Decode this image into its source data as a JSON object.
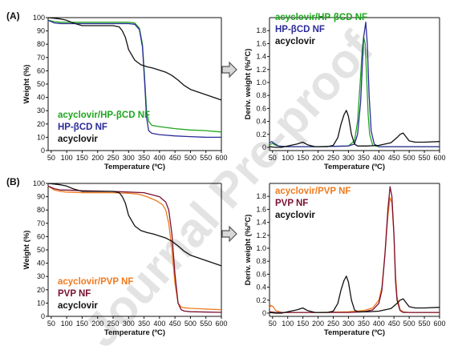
{
  "watermark": "Journal Pre-proof",
  "colors": {
    "acyclovir": "#111111",
    "hpbcd_nf": "#2b2b9a",
    "acyclovir_hpbcd_nf": "#1fa51f",
    "pvp_nf": "#7a1030",
    "acyclovir_pvp_nf": "#f07a1e"
  },
  "arrow_icon": "right-arrow-icon",
  "chart_data": [
    {
      "id": "A-left",
      "panel_label": "(A)",
      "type": "line",
      "xlabel": "Temperature (ºC)",
      "ylabel": "Weight (%)",
      "xlim": [
        40,
        600
      ],
      "ylim": [
        0,
        100
      ],
      "x_ticks": [
        50,
        100,
        150,
        200,
        250,
        300,
        350,
        400,
        450,
        500,
        550,
        600
      ],
      "y_ticks": [
        0,
        10,
        20,
        30,
        40,
        50,
        60,
        70,
        80,
        90,
        100
      ],
      "legend": [
        "acyclovir/HP-βCD NF",
        "HP-βCD NF",
        "acyclovir"
      ],
      "series": [
        {
          "name": "acyclovir/HP-βCD NF",
          "color_key": "acyclovir_hpbcd_nf",
          "x": [
            40,
            60,
            80,
            100,
            200,
            300,
            320,
            335,
            345,
            352,
            358,
            365,
            375,
            400,
            450,
            500,
            550,
            600
          ],
          "y": [
            98,
            97,
            96.5,
            96.5,
            96.5,
            96.5,
            96,
            92,
            80,
            55,
            30,
            22,
            19,
            18,
            16.5,
            15.5,
            15,
            14
          ]
        },
        {
          "name": "HP-βCD NF",
          "color_key": "hpbcd_nf",
          "x": [
            40,
            60,
            80,
            100,
            200,
            300,
            320,
            335,
            345,
            352,
            358,
            365,
            375,
            400,
            450,
            500,
            550,
            600
          ],
          "y": [
            98,
            96,
            95.5,
            95.5,
            95.5,
            95.5,
            95,
            91,
            78,
            52,
            25,
            15,
            13,
            12,
            11,
            10.5,
            10,
            10
          ]
        },
        {
          "name": "acyclovir",
          "color_key": "acyclovir",
          "x": [
            40,
            60,
            80,
            100,
            120,
            150,
            200,
            250,
            270,
            280,
            290,
            300,
            320,
            340,
            360,
            380,
            400,
            420,
            440,
            460,
            480,
            500,
            550,
            600
          ],
          "y": [
            100,
            99.5,
            99,
            98,
            96,
            94,
            94,
            94,
            93,
            90,
            85,
            76,
            68,
            64.5,
            63,
            62,
            60.5,
            59,
            56.5,
            53,
            49,
            46,
            42,
            38
          ]
        }
      ]
    },
    {
      "id": "A-right",
      "type": "line",
      "xlabel": "Temperature (ºC)",
      "ylabel": "Deriv. weight (%/ºC)",
      "xlim": [
        40,
        600
      ],
      "ylim": [
        -0.05,
        2.0
      ],
      "x_ticks": [
        50,
        100,
        150,
        200,
        250,
        300,
        350,
        400,
        450,
        500,
        550,
        600
      ],
      "y_ticks": [
        0,
        0.2,
        0.4,
        0.6,
        0.8,
        1.0,
        1.2,
        1.4,
        1.6,
        1.8
      ],
      "y_tick_labels": [
        "0",
        "0.2",
        "0.4",
        "0.6",
        "0.8",
        "1.0",
        "1.2",
        "1.4",
        "1.6",
        "1.8"
      ],
      "legend": [
        "acyclovir/HP-βCD NF",
        "HP-βCD NF",
        "acyclovir"
      ],
      "series": [
        {
          "name": "acyclovir/HP-βCD NF",
          "color_key": "acyclovir_hpbcd_nf",
          "x": [
            40,
            50,
            60,
            80,
            100,
            200,
            300,
            320,
            330,
            340,
            345,
            350,
            355,
            360,
            365,
            370,
            380,
            400,
            500,
            600
          ],
          "y": [
            0.04,
            0.06,
            0.03,
            0.01,
            0.01,
            0.01,
            0.02,
            0.1,
            0.4,
            1.1,
            1.5,
            1.7,
            1.6,
            1.1,
            0.5,
            0.2,
            0.03,
            0.01,
            0.01,
            0.01
          ]
        },
        {
          "name": "HP-βCD NF",
          "color_key": "hpbcd_nf",
          "x": [
            40,
            48,
            55,
            70,
            100,
            200,
            300,
            320,
            330,
            340,
            345,
            350,
            357,
            362,
            368,
            375,
            385,
            400,
            500,
            600
          ],
          "y": [
            0.07,
            0.09,
            0.06,
            0.02,
            0.01,
            0.01,
            0.02,
            0.05,
            0.2,
            0.7,
            1.2,
            1.7,
            1.93,
            1.6,
            0.8,
            0.25,
            0.05,
            0.01,
            0.01,
            0.01
          ]
        },
        {
          "name": "acyclovir",
          "color_key": "acyclovir",
          "x": [
            40,
            60,
            80,
            100,
            130,
            150,
            165,
            190,
            230,
            250,
            265,
            275,
            285,
            293,
            300,
            310,
            320,
            330,
            340,
            360,
            400,
            440,
            460,
            470,
            480,
            490,
            500,
            520,
            550,
            600
          ],
          "y": [
            0.01,
            0.0,
            0.0,
            0.02,
            0.05,
            0.08,
            0.04,
            0.01,
            0.01,
            0.03,
            0.15,
            0.35,
            0.5,
            0.57,
            0.48,
            0.2,
            0.05,
            0.02,
            0.02,
            0.02,
            0.03,
            0.07,
            0.15,
            0.2,
            0.22,
            0.16,
            0.1,
            0.08,
            0.08,
            0.09
          ]
        }
      ]
    },
    {
      "id": "B-left",
      "panel_label": "(B)",
      "type": "line",
      "xlabel": "Temperature (ºC)",
      "ylabel": "Weight (%)",
      "xlim": [
        40,
        600
      ],
      "ylim": [
        0,
        100
      ],
      "x_ticks": [
        50,
        100,
        150,
        200,
        250,
        300,
        350,
        400,
        450,
        500,
        550,
        600
      ],
      "y_ticks": [
        0,
        10,
        20,
        30,
        40,
        50,
        60,
        70,
        80,
        90,
        100
      ],
      "legend": [
        "acyclovir/PVP NF",
        "PVP NF",
        "acyclovir"
      ],
      "series": [
        {
          "name": "acyclovir/PVP NF",
          "color_key": "acyclovir_pvp_nf",
          "x": [
            40,
            60,
            80,
            100,
            150,
            250,
            300,
            330,
            360,
            390,
            410,
            420,
            430,
            440,
            450,
            460,
            470,
            480,
            500,
            600
          ],
          "y": [
            98,
            95,
            94,
            93.5,
            93,
            93,
            92.5,
            92,
            90,
            87,
            84,
            80,
            70,
            50,
            25,
            10,
            7,
            6.5,
            6,
            5
          ]
        },
        {
          "name": "PVP NF",
          "color_key": "pvp_nf",
          "x": [
            40,
            60,
            80,
            100,
            150,
            250,
            300,
            350,
            400,
            420,
            430,
            440,
            450,
            460,
            470,
            480,
            500,
            600
          ],
          "y": [
            98,
            96,
            95,
            95,
            94.5,
            94,
            93.5,
            93,
            90,
            86,
            80,
            62,
            32,
            10,
            5,
            4,
            3.5,
            3
          ]
        },
        {
          "name": "acyclovir",
          "color_key": "acyclovir",
          "x": [
            40,
            60,
            80,
            100,
            120,
            150,
            200,
            250,
            270,
            280,
            290,
            300,
            320,
            340,
            360,
            380,
            400,
            420,
            440,
            460,
            480,
            500,
            550,
            600
          ],
          "y": [
            100,
            99.5,
            99,
            98,
            96,
            94,
            94,
            94,
            93,
            90,
            85,
            76,
            68,
            64.5,
            63,
            62,
            60.5,
            59,
            56.5,
            53,
            49,
            46,
            42,
            38
          ]
        }
      ]
    },
    {
      "id": "B-right",
      "type": "line",
      "xlabel": "Temperature (ºC)",
      "ylabel": "Deriv. weight (%/ºC)",
      "xlim": [
        40,
        600
      ],
      "ylim": [
        -0.05,
        2.0
      ],
      "x_ticks": [
        50,
        100,
        150,
        200,
        250,
        300,
        350,
        400,
        450,
        500,
        550,
        600
      ],
      "y_ticks": [
        0,
        0.2,
        0.4,
        0.6,
        0.8,
        1.0,
        1.2,
        1.4,
        1.6,
        1.8
      ],
      "y_tick_labels": [
        "0",
        "0.2",
        "0.4",
        "0.6",
        "0.8",
        "1.0",
        "1.2",
        "1.4",
        "1.6",
        "1.8"
      ],
      "legend": [
        "acyclovir/PVP NF",
        "PVP NF",
        "acyclovir"
      ],
      "series": [
        {
          "name": "acyclovir/PVP NF",
          "color_key": "acyclovir_pvp_nf",
          "x": [
            40,
            45,
            52,
            60,
            80,
            100,
            200,
            300,
            350,
            380,
            400,
            410,
            420,
            430,
            437,
            443,
            450,
            455,
            460,
            470,
            480,
            500,
            600
          ],
          "y": [
            0.08,
            0.12,
            0.1,
            0.04,
            0.01,
            0.01,
            0.01,
            0.02,
            0.04,
            0.08,
            0.2,
            0.4,
            0.9,
            1.5,
            1.78,
            1.7,
            1.2,
            0.6,
            0.25,
            0.05,
            0.02,
            0.01,
            0.01
          ]
        },
        {
          "name": "PVP NF",
          "color_key": "pvp_nf",
          "x": [
            40,
            60,
            100,
            200,
            300,
            350,
            380,
            400,
            410,
            420,
            430,
            437,
            443,
            450,
            455,
            460,
            470,
            480,
            500,
            600
          ],
          "y": [
            0.02,
            0.01,
            0.01,
            0.01,
            0.01,
            0.02,
            0.05,
            0.15,
            0.35,
            0.9,
            1.6,
            1.95,
            1.8,
            1.2,
            0.5,
            0.2,
            0.04,
            0.01,
            0.01,
            0.01
          ]
        },
        {
          "name": "acyclovir",
          "color_key": "acyclovir",
          "x": [
            40,
            60,
            80,
            100,
            130,
            150,
            165,
            190,
            230,
            250,
            265,
            275,
            285,
            293,
            300,
            310,
            320,
            330,
            340,
            360,
            400,
            440,
            460,
            470,
            480,
            490,
            500,
            520,
            550,
            600
          ],
          "y": [
            0.01,
            0.0,
            0.0,
            0.02,
            0.05,
            0.08,
            0.04,
            0.01,
            0.01,
            0.03,
            0.15,
            0.35,
            0.5,
            0.57,
            0.48,
            0.2,
            0.05,
            0.02,
            0.02,
            0.02,
            0.03,
            0.07,
            0.15,
            0.2,
            0.22,
            0.16,
            0.1,
            0.08,
            0.08,
            0.09
          ]
        }
      ]
    }
  ]
}
